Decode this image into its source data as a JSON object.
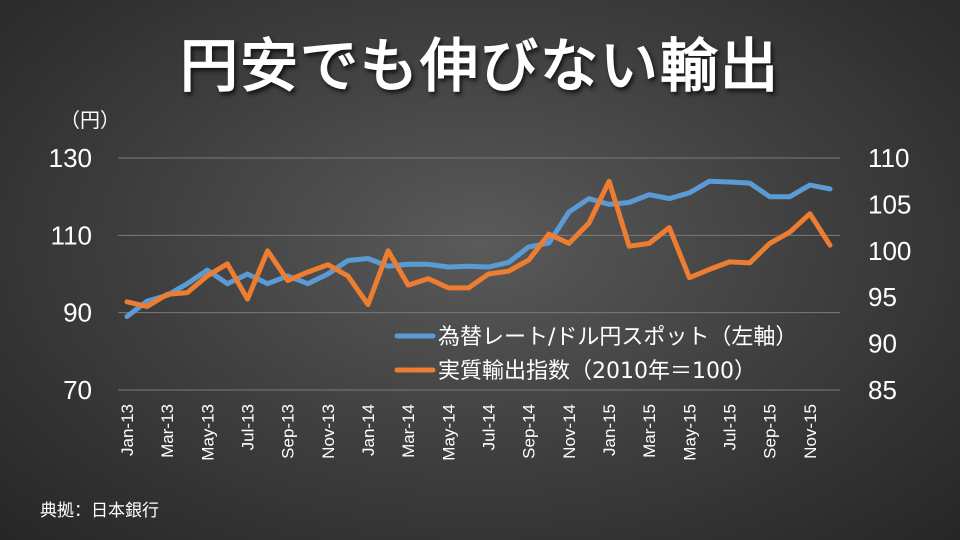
{
  "title": "円安でも伸びない輸出",
  "unit_label": "（円）",
  "source": "典拠：日本銀行",
  "chart_data": {
    "type": "line",
    "x": [
      "Jan-13",
      "Feb-13",
      "Mar-13",
      "Apr-13",
      "May-13",
      "Jun-13",
      "Jul-13",
      "Aug-13",
      "Sep-13",
      "Oct-13",
      "Nov-13",
      "Dec-13",
      "Jan-14",
      "Feb-14",
      "Mar-14",
      "Apr-14",
      "May-14",
      "Jun-14",
      "Jul-14",
      "Aug-14",
      "Sep-14",
      "Oct-14",
      "Nov-14",
      "Dec-14",
      "Jan-15",
      "Feb-15",
      "Mar-15",
      "Apr-15",
      "May-15",
      "Jun-15",
      "Jul-15",
      "Aug-15",
      "Sep-15",
      "Oct-15",
      "Nov-15",
      "Dec-15"
    ],
    "xticks": [
      "Jan-13",
      "Mar-13",
      "May-13",
      "Jul-13",
      "Sep-13",
      "Nov-13",
      "Jan-14",
      "Mar-14",
      "May-14",
      "Jul-14",
      "Sep-14",
      "Nov-14",
      "Jan-15",
      "Mar-15",
      "May-15",
      "Jul-15",
      "Sep-15",
      "Nov-15"
    ],
    "y_left": {
      "ylim": [
        70,
        130
      ],
      "ticks": [
        "130",
        "110",
        "90",
        "70"
      ]
    },
    "y_right": {
      "ylim": [
        85,
        110
      ],
      "ticks": [
        "110",
        "105",
        "100",
        "95",
        "90",
        "85"
      ]
    },
    "legend_position": "center-right",
    "series": [
      {
        "name": "為替レート/ドル円スポット（左軸）",
        "axis": "left",
        "color": "#5b9bd5",
        "values": [
          89.0,
          93.0,
          94.5,
          97.5,
          101.0,
          97.5,
          100.0,
          97.5,
          99.5,
          97.5,
          100.0,
          103.5,
          104.0,
          102.0,
          102.5,
          102.5,
          101.8,
          102.0,
          101.8,
          103.0,
          107.0,
          108.0,
          116.0,
          119.5,
          118.0,
          118.5,
          120.5,
          119.5,
          121.0,
          124.0,
          123.8,
          123.5,
          120.0,
          120.0,
          123.0,
          122.0
        ]
      },
      {
        "name": "実質輸出指数（2010年＝100）",
        "axis": "right",
        "color": "#ed7d31",
        "values": [
          94.5,
          94.0,
          95.3,
          95.5,
          97.3,
          98.6,
          94.8,
          100.0,
          96.8,
          97.7,
          98.5,
          97.3,
          94.2,
          100.0,
          96.3,
          97.0,
          96.0,
          96.0,
          97.5,
          97.8,
          99.0,
          101.8,
          100.8,
          103.0,
          107.5,
          100.5,
          100.8,
          102.5,
          97.1,
          98.0,
          98.8,
          98.7,
          100.8,
          102.0,
          104.0,
          100.6
        ]
      }
    ]
  }
}
